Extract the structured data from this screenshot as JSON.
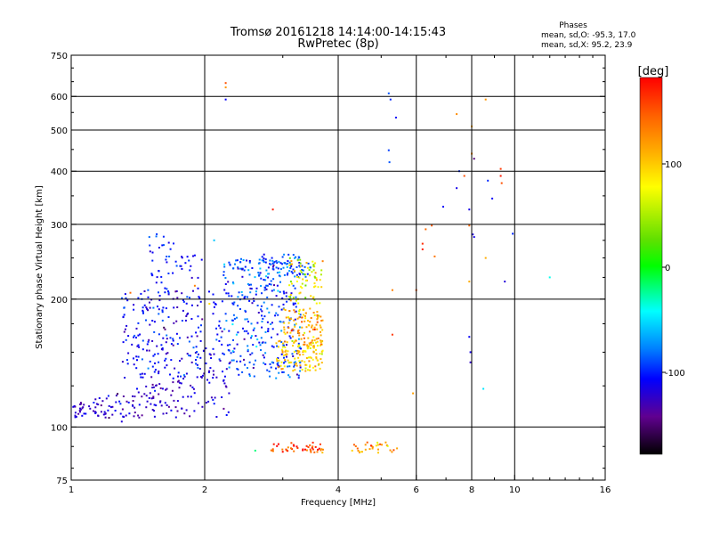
{
  "header": {
    "title_line1": "Tromsø 20161218 14:14:00-14:15:43",
    "title_line2": "RwPretec (8p)",
    "phases_title": "Phases",
    "phases_line1": "mean, sd,O: -95.3, 17.0",
    "phases_line2": "mean, sd,X:  95.2, 23.9"
  },
  "colorbar": {
    "label": "[deg]",
    "ticks": [
      "100",
      "0",
      "-100"
    ]
  },
  "chart_data": {
    "type": "scatter",
    "xlabel": "Frequency [MHz]",
    "ylabel": "Stationary phase Virtual Height [km]",
    "xscale": "log",
    "yscale": "log",
    "xlim": [
      1,
      16
    ],
    "ylim": [
      75,
      750
    ],
    "x_ticks": [
      1,
      2,
      4,
      6,
      8,
      10,
      16
    ],
    "x_tick_labels": [
      "1",
      "2",
      "4",
      "6",
      "8",
      "10",
      "16"
    ],
    "y_ticks": [
      75,
      100,
      200,
      300,
      400,
      500,
      600,
      750
    ],
    "y_tick_labels": [
      "75",
      "100",
      "200",
      "300",
      "400",
      "500",
      "600",
      "750"
    ],
    "grid": true,
    "color_scale": {
      "name": "phase",
      "unit": "deg",
      "min": -180,
      "max": 180,
      "colormap": "rainbow"
    },
    "clusters": [
      {
        "region": "low-frequency O trace",
        "x_range": [
          1.0,
          2.3
        ],
        "y_range": [
          105,
          140
        ],
        "phase_mean": -125,
        "phase_sd": 12,
        "density": 170,
        "shape": "ramp-low"
      },
      {
        "region": "F-layer O trace",
        "x_range": [
          1.3,
          2.2
        ],
        "y_range": [
          130,
          210
        ],
        "phase_mean": -110,
        "phase_sd": 15,
        "density": 230,
        "shape": "box"
      },
      {
        "region": "F-layer O upper",
        "x_range": [
          1.5,
          2.0
        ],
        "y_range": [
          200,
          285
        ],
        "phase_mean": -105,
        "phase_sd": 12,
        "density": 55,
        "shape": "box"
      },
      {
        "region": "F-layer cluster near 2.5 MHz",
        "x_range": [
          2.2,
          3.3
        ],
        "y_range": [
          130,
          250
        ],
        "phase_mean": -95,
        "phase_sd": 17,
        "density": 320,
        "shape": "box"
      },
      {
        "region": "F-layer top",
        "x_range": [
          2.4,
          3.5
        ],
        "y_range": [
          225,
          255
        ],
        "phase_mean": -88,
        "phase_sd": 15,
        "density": 70,
        "shape": "box"
      },
      {
        "region": "X trace lower",
        "x_range": [
          2.9,
          3.7
        ],
        "y_range": [
          135,
          160
        ],
        "phase_mean": 95,
        "phase_sd": 20,
        "density": 120,
        "shape": "box"
      },
      {
        "region": "X trace middle",
        "x_range": [
          3.0,
          3.7
        ],
        "y_range": [
          155,
          190
        ],
        "phase_mean": 110,
        "phase_sd": 22,
        "density": 100,
        "shape": "box"
      },
      {
        "region": "X trace upper",
        "x_range": [
          3.1,
          3.7
        ],
        "y_range": [
          195,
          250
        ],
        "phase_mean": 70,
        "phase_sd": 30,
        "density": 70,
        "shape": "box"
      },
      {
        "region": "E-layer echoes",
        "x_range": [
          2.8,
          3.7
        ],
        "y_range": [
          87,
          92
        ],
        "phase_mean": 150,
        "phase_sd": 25,
        "density": 45,
        "shape": "box"
      },
      {
        "region": "E-layer echoes high freq",
        "x_range": [
          4.3,
          5.6
        ],
        "y_range": [
          87,
          92
        ],
        "phase_mean": 125,
        "phase_sd": 25,
        "density": 30,
        "shape": "box"
      }
    ],
    "points": [
      {
        "x": 2.23,
        "y": 590,
        "phase": -110
      },
      {
        "x": 2.23,
        "y": 630,
        "phase": 120
      },
      {
        "x": 2.23,
        "y": 645,
        "phase": 150
      },
      {
        "x": 2.85,
        "y": 325,
        "phase": 170
      },
      {
        "x": 5.2,
        "y": 610,
        "phase": -90
      },
      {
        "x": 5.25,
        "y": 590,
        "phase": -100
      },
      {
        "x": 5.4,
        "y": 535,
        "phase": -110
      },
      {
        "x": 5.2,
        "y": 448,
        "phase": -95
      },
      {
        "x": 5.22,
        "y": 420,
        "phase": -90
      },
      {
        "x": 5.3,
        "y": 210,
        "phase": 130
      },
      {
        "x": 5.3,
        "y": 165,
        "phase": 160
      },
      {
        "x": 5.9,
        "y": 120,
        "phase": 115
      },
      {
        "x": 6.0,
        "y": 210,
        "phase": 150
      },
      {
        "x": 6.2,
        "y": 270,
        "phase": 165
      },
      {
        "x": 6.2,
        "y": 262,
        "phase": 170
      },
      {
        "x": 6.3,
        "y": 292,
        "phase": 140
      },
      {
        "x": 6.5,
        "y": 298,
        "phase": 145
      },
      {
        "x": 6.6,
        "y": 252,
        "phase": 135
      },
      {
        "x": 6.9,
        "y": 330,
        "phase": -110
      },
      {
        "x": 7.4,
        "y": 545,
        "phase": 125
      },
      {
        "x": 7.5,
        "y": 400,
        "phase": -100
      },
      {
        "x": 7.4,
        "y": 365,
        "phase": -115
      },
      {
        "x": 8.0,
        "y": 510,
        "phase": 110
      },
      {
        "x": 8.0,
        "y": 440,
        "phase": 120
      },
      {
        "x": 8.1,
        "y": 428,
        "phase": -150
      },
      {
        "x": 7.7,
        "y": 390,
        "phase": 150
      },
      {
        "x": 7.9,
        "y": 325,
        "phase": -115
      },
      {
        "x": 7.9,
        "y": 298,
        "phase": 140
      },
      {
        "x": 8.05,
        "y": 284,
        "phase": -120
      },
      {
        "x": 8.1,
        "y": 280,
        "phase": -115
      },
      {
        "x": 7.9,
        "y": 220,
        "phase": 110
      },
      {
        "x": 7.9,
        "y": 163,
        "phase": -110
      },
      {
        "x": 7.95,
        "y": 150,
        "phase": -115
      },
      {
        "x": 7.95,
        "y": 142,
        "phase": -125
      },
      {
        "x": 8.6,
        "y": 590,
        "phase": 120
      },
      {
        "x": 8.6,
        "y": 250,
        "phase": 110
      },
      {
        "x": 8.7,
        "y": 380,
        "phase": -100
      },
      {
        "x": 8.9,
        "y": 345,
        "phase": -110
      },
      {
        "x": 8.5,
        "y": 123,
        "phase": -50
      },
      {
        "x": 9.3,
        "y": 405,
        "phase": 160
      },
      {
        "x": 9.3,
        "y": 390,
        "phase": 170
      },
      {
        "x": 9.35,
        "y": 375,
        "phase": 150
      },
      {
        "x": 9.5,
        "y": 220,
        "phase": -120
      },
      {
        "x": 9.9,
        "y": 285,
        "phase": -100
      },
      {
        "x": 12.0,
        "y": 225,
        "phase": -40
      },
      {
        "x": 1.3,
        "y": 103,
        "phase": -120
      },
      {
        "x": 1.15,
        "y": 113,
        "phase": -125
      },
      {
        "x": 1.36,
        "y": 207,
        "phase": 140
      },
      {
        "x": 1.9,
        "y": 215,
        "phase": 130
      },
      {
        "x": 2.6,
        "y": 88,
        "phase": -20
      },
      {
        "x": 2.1,
        "y": 275,
        "phase": -60
      },
      {
        "x": 2.05,
        "y": 195,
        "phase": 90
      }
    ]
  }
}
